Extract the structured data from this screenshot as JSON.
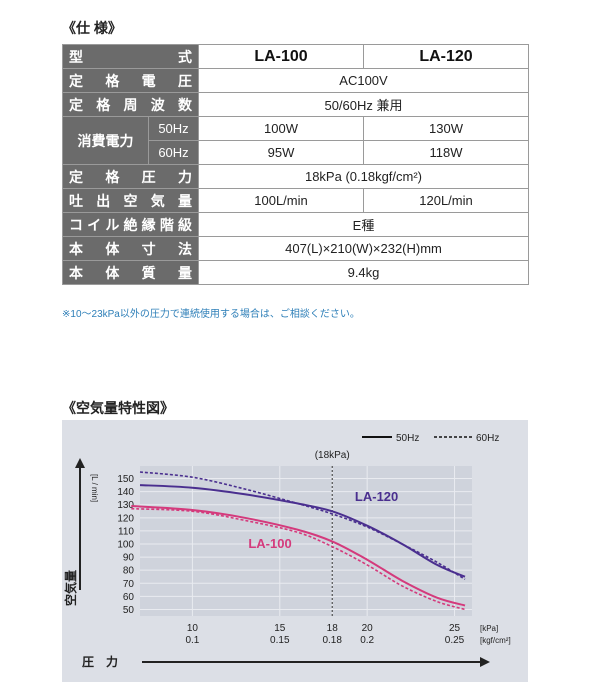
{
  "spec": {
    "title": "《仕 様》",
    "rows": [
      {
        "label": "型　　　　　式",
        "cells": [
          "LA-100",
          "LA-120"
        ]
      },
      {
        "label": "定 格 電 圧",
        "cells": [
          "AC100V"
        ]
      },
      {
        "label": "定格周波数",
        "cells": [
          "50/60Hz 兼用"
        ]
      },
      {
        "label": "消費電力",
        "freq": "50Hz",
        "cells": [
          "100W",
          "130W"
        ]
      },
      {
        "freq": "60Hz",
        "cells": [
          "95W",
          "118W"
        ]
      },
      {
        "label": "定 格 圧 力",
        "cells": [
          "18kPa (0.18kgf/cm²)"
        ]
      },
      {
        "label": "吐出空気量",
        "cells": [
          "100L/min",
          "120L/min"
        ]
      },
      {
        "label": "コイル絶縁階級",
        "cells": [
          "E種"
        ]
      },
      {
        "label": "本 体 寸 法",
        "cells": [
          "407(L)×210(W)×232(H)mm"
        ]
      },
      {
        "label": "本 体 質 量",
        "cells": [
          "9.4kg"
        ]
      }
    ],
    "note": "※10～23kPa以外の圧力で連続使用する場合は、ご相談ください。"
  },
  "chart_title": "《空気量特性図》",
  "chart_data": {
    "type": "line",
    "title": "",
    "xlabel": "圧　力",
    "ylabel": "空気量",
    "y_unit": "[L / min]",
    "x_unit_top": "[kPa]",
    "x_unit_bottom": "[kgf/cm²]",
    "marker_label": "(18kPa)",
    "marker_x": 18,
    "xlim": [
      7,
      26
    ],
    "ylim": [
      45,
      155
    ],
    "x_ticks": [
      {
        "kpa": 10,
        "top": "10",
        "bottom": "0.1"
      },
      {
        "kpa": 15,
        "top": "15",
        "bottom": "0.15"
      },
      {
        "kpa": 18,
        "top": "18",
        "bottom": "0.18"
      },
      {
        "kpa": 20,
        "top": "20",
        "bottom": "0.2"
      },
      {
        "kpa": 25,
        "top": "25",
        "bottom": "0.25"
      }
    ],
    "y_ticks": [
      50,
      60,
      70,
      80,
      90,
      100,
      110,
      120,
      130,
      140,
      150
    ],
    "legend": [
      {
        "label": "50Hz",
        "style": "solid"
      },
      {
        "label": "60Hz",
        "style": "dashed"
      }
    ],
    "series": [
      {
        "name": "LA-120",
        "freq": "50Hz",
        "color": "#4a2f8f",
        "dashed": false,
        "x": [
          7,
          10,
          13,
          16,
          18,
          20,
          22,
          24,
          25.6
        ],
        "y": [
          145,
          143,
          138,
          131,
          125,
          114,
          100,
          84,
          75
        ]
      },
      {
        "name": "LA-120",
        "freq": "60Hz",
        "color": "#4a2f8f",
        "dashed": true,
        "x": [
          7,
          10,
          13,
          16,
          18,
          20,
          22,
          24,
          25.6
        ],
        "y": [
          155,
          151,
          142,
          131,
          123,
          113,
          100,
          86,
          73
        ]
      },
      {
        "name": "LA-100",
        "freq": "50Hz",
        "color": "#d43a7c",
        "dashed": false,
        "x": [
          6.5,
          10,
          13,
          16,
          18,
          20,
          22,
          24,
          25.6
        ],
        "y": [
          129,
          126,
          120,
          111,
          102,
          88,
          72,
          59,
          53
        ]
      },
      {
        "name": "LA-100",
        "freq": "60Hz",
        "color": "#d43a7c",
        "dashed": true,
        "x": [
          6.5,
          10,
          13,
          16,
          18,
          20,
          22,
          24,
          25.6
        ],
        "y": [
          127,
          125,
          118,
          109,
          98,
          84,
          68,
          56,
          50
        ]
      }
    ],
    "series_labels": [
      {
        "text": "LA-120",
        "color": "#4a2f8f"
      },
      {
        "text": "LA-100",
        "color": "#d43a7c"
      }
    ],
    "colors": {
      "panel": "#dcdfe6",
      "axis": "#222222"
    }
  }
}
